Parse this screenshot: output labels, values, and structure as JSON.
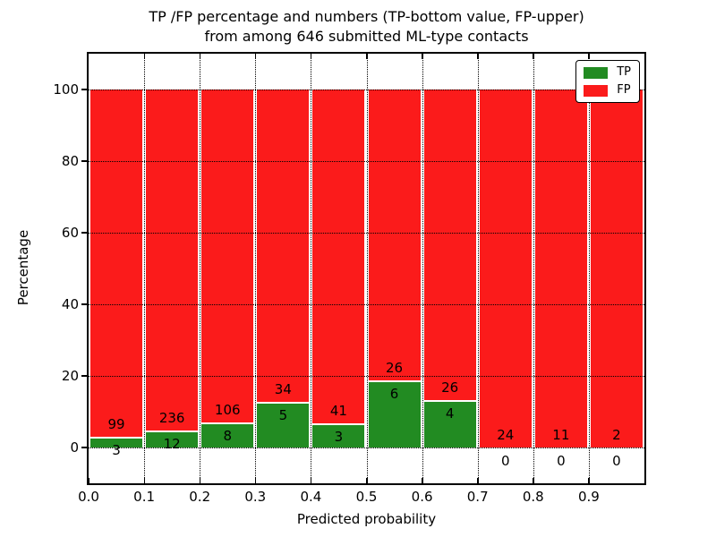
{
  "figure": {
    "title_line1": "TP /FP percentage and numbers (TP-bottom value, FP-upper)",
    "title_line2": "from among 646 submitted ML-type contacts"
  },
  "axes": {
    "xlabel": "Predicted probability",
    "ylabel": "Percentage",
    "x_tick_labels": [
      "0.0",
      "0.1",
      "0.2",
      "0.3",
      "0.4",
      "0.5",
      "0.6",
      "0.7",
      "0.8",
      "0.9"
    ],
    "y_tick_labels": [
      "0",
      "20",
      "40",
      "60",
      "80",
      "100"
    ]
  },
  "legend": {
    "items": [
      {
        "label": "TP",
        "color": "#228b22"
      },
      {
        "label": "FP",
        "color": "#fb1b1b"
      }
    ]
  },
  "chart_data": {
    "type": "bar",
    "subtype": "stacked-percentage-histogram",
    "title": "TP /FP percentage and numbers (TP-bottom value, FP-upper)\nfrom among 646 submitted ML-type contacts",
    "xlabel": "Predicted probability",
    "ylabel": "Percentage",
    "bin_edges": [
      0.0,
      0.1,
      0.2,
      0.3,
      0.4,
      0.5,
      0.6,
      0.7,
      0.8,
      0.9,
      1.0
    ],
    "x_ticks": [
      0.0,
      0.1,
      0.2,
      0.3,
      0.4,
      0.5,
      0.6,
      0.7,
      0.8,
      0.9
    ],
    "y_ticks": [
      0,
      20,
      40,
      60,
      80,
      100
    ],
    "xlim": [
      0.0,
      1.0
    ],
    "ylim": [
      -10,
      110
    ],
    "grid": true,
    "grid_style": "dotted",
    "legend_position": "upper right",
    "bar_edge_color": "#ffffff",
    "series": [
      {
        "name": "TP",
        "color": "#228b22",
        "counts": [
          3,
          12,
          8,
          5,
          3,
          6,
          4,
          0,
          0,
          0
        ],
        "pct": [
          2.94,
          4.84,
          7.02,
          12.82,
          6.82,
          18.75,
          13.33,
          0.0,
          0.0,
          0.0
        ]
      },
      {
        "name": "FP",
        "color": "#fb1b1b",
        "counts": [
          99,
          236,
          106,
          34,
          41,
          26,
          26,
          24,
          11,
          2
        ],
        "pct": [
          97.06,
          95.16,
          92.98,
          87.18,
          93.18,
          81.25,
          86.67,
          100.0,
          100.0,
          100.0
        ]
      }
    ]
  }
}
